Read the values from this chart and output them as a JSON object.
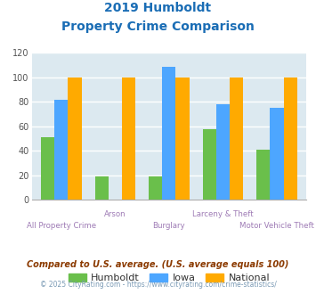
{
  "title_line1": "2019 Humboldt",
  "title_line2": "Property Crime Comparison",
  "categories": [
    "All Property Crime",
    "Arson",
    "Burglary",
    "Larceny & Theft",
    "Motor Vehicle Theft"
  ],
  "humboldt": [
    51,
    19,
    19,
    58,
    41
  ],
  "iowa": [
    82,
    0,
    109,
    78,
    75
  ],
  "national": [
    100,
    100,
    100,
    100,
    100
  ],
  "ylim": [
    0,
    120
  ],
  "yticks": [
    0,
    20,
    40,
    60,
    80,
    100,
    120
  ],
  "bar_width": 0.25,
  "color_humboldt": "#6abf4b",
  "color_iowa": "#4da6ff",
  "color_national": "#ffaa00",
  "title_color": "#1a6db5",
  "label_color": "#9e7bb5",
  "bg_color": "#dce9f0",
  "grid_color": "#ffffff",
  "legend_label_humboldt": "Humboldt",
  "legend_label_iowa": "Iowa",
  "legend_label_national": "National",
  "bottom_labels": [
    "All Property Crime",
    "",
    "Burglary",
    "",
    "Motor Vehicle Theft"
  ],
  "top_labels": [
    "",
    "Arson",
    "",
    "Larceny & Theft",
    ""
  ],
  "footnote1": "Compared to U.S. average. (U.S. average equals 100)",
  "footnote2": "© 2025 CityRating.com - https://www.cityrating.com/crime-statistics/",
  "footnote1_color": "#8b3a00",
  "footnote2_color": "#7a9ab5"
}
